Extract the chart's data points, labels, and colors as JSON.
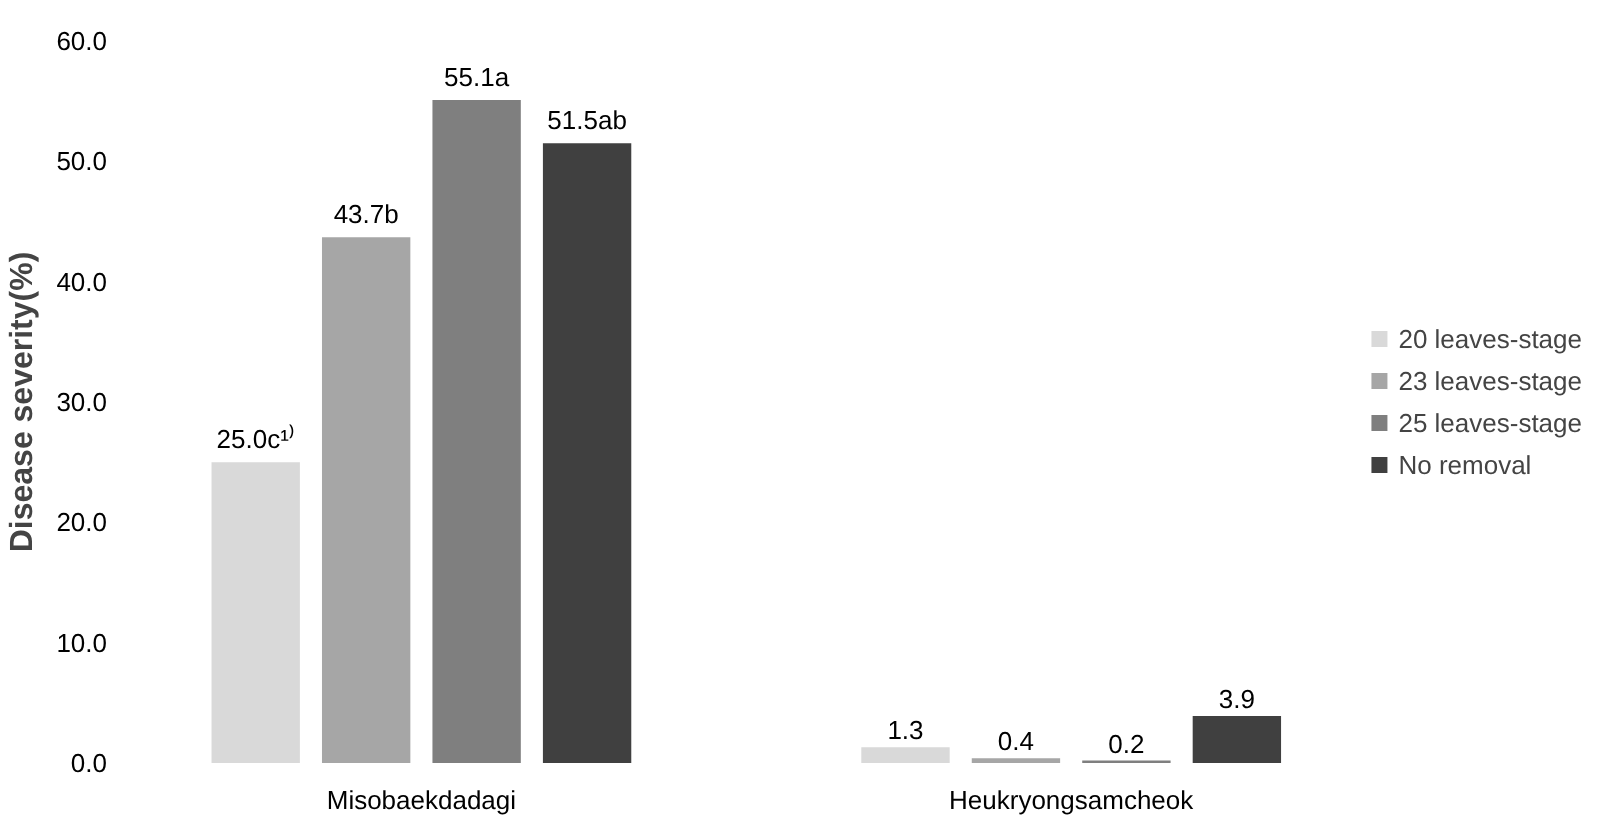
{
  "chart_data": {
    "type": "bar",
    "ylabel": "Disease severity(%)",
    "categories": [
      "Misobaekdadagi",
      "Heukryongsamcheok"
    ],
    "series": [
      {
        "name": "20 leaves-stage",
        "color": "#d9d9d9",
        "values": [
          25.0,
          1.3
        ],
        "value_labels": [
          "25.0c¹⁾",
          "1.3"
        ]
      },
      {
        "name": "23 leaves-stage",
        "color": "#a6a6a6",
        "values": [
          43.7,
          0.4
        ],
        "value_labels": [
          "43.7b",
          "0.4"
        ]
      },
      {
        "name": "25 leaves-stage",
        "color": "#7f7f7f",
        "values": [
          55.1,
          0.2
        ],
        "value_labels": [
          "55.1a",
          "0.2"
        ]
      },
      {
        "name": "No removal",
        "color": "#404040",
        "values": [
          51.5,
          3.9
        ],
        "value_labels": [
          "51.5ab",
          "3.9"
        ]
      }
    ],
    "ylim": [
      0,
      60
    ],
    "yticks": [
      {
        "value": 0,
        "label": "0.0"
      },
      {
        "value": 10,
        "label": "10.0"
      },
      {
        "value": 20,
        "label": "20.0"
      },
      {
        "value": 30,
        "label": "30.0"
      },
      {
        "value": 40,
        "label": "40.0"
      },
      {
        "value": 50,
        "label": "50.0"
      },
      {
        "value": 60,
        "label": "60.0"
      }
    ],
    "grid": false,
    "legend": "right"
  }
}
